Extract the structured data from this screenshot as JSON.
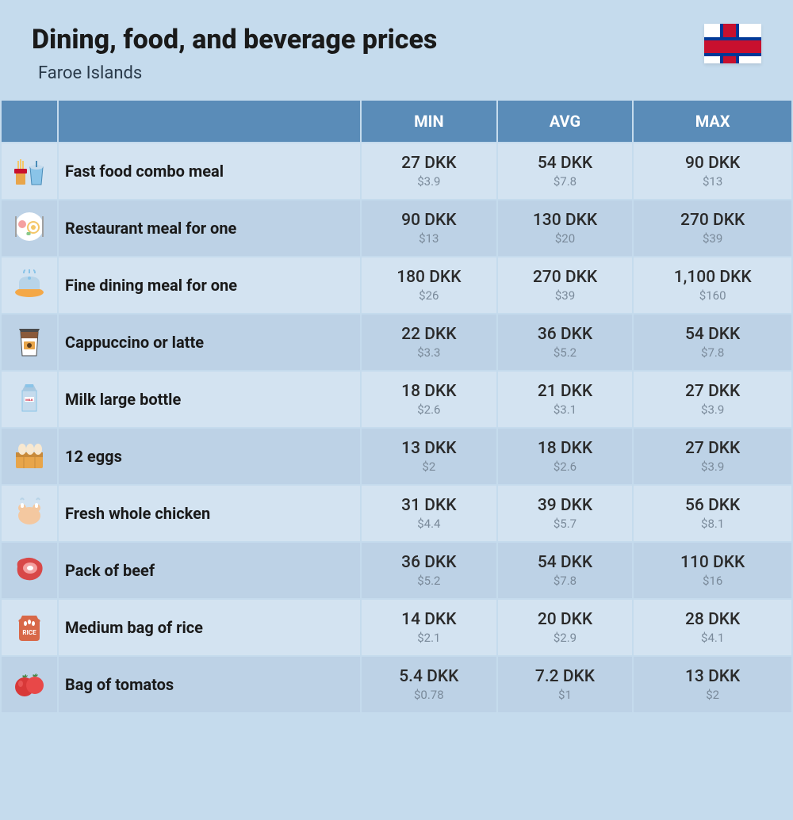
{
  "header": {
    "title": "Dining, food, and beverage prices",
    "subtitle": "Faroe Islands"
  },
  "columns": {
    "min": "MIN",
    "avg": "AVG",
    "max": "MAX"
  },
  "colors": {
    "page_bg": "#c5dbed",
    "header_bg": "#5a8cb8",
    "header_text": "#ffffff",
    "row_odd_bg": "#d3e3f1",
    "row_even_bg": "#bdd2e6",
    "price_sub": "#7a8a9a",
    "title_color": "#1a1a1a"
  },
  "rows": [
    {
      "icon": "fast-food",
      "name": "Fast food combo meal",
      "min": {
        "local": "27 DKK",
        "usd": "$3.9"
      },
      "avg": {
        "local": "54 DKK",
        "usd": "$7.8"
      },
      "max": {
        "local": "90 DKK",
        "usd": "$13"
      }
    },
    {
      "icon": "restaurant-meal",
      "name": "Restaurant meal for one",
      "min": {
        "local": "90 DKK",
        "usd": "$13"
      },
      "avg": {
        "local": "130 DKK",
        "usd": "$20"
      },
      "max": {
        "local": "270 DKK",
        "usd": "$39"
      }
    },
    {
      "icon": "fine-dining",
      "name": "Fine dining meal for one",
      "min": {
        "local": "180 DKK",
        "usd": "$26"
      },
      "avg": {
        "local": "270 DKK",
        "usd": "$39"
      },
      "max": {
        "local": "1,100 DKK",
        "usd": "$160"
      }
    },
    {
      "icon": "coffee",
      "name": "Cappuccino or latte",
      "min": {
        "local": "22 DKK",
        "usd": "$3.3"
      },
      "avg": {
        "local": "36 DKK",
        "usd": "$5.2"
      },
      "max": {
        "local": "54 DKK",
        "usd": "$7.8"
      }
    },
    {
      "icon": "milk",
      "name": "Milk large bottle",
      "min": {
        "local": "18 DKK",
        "usd": "$2.6"
      },
      "avg": {
        "local": "21 DKK",
        "usd": "$3.1"
      },
      "max": {
        "local": "27 DKK",
        "usd": "$3.9"
      }
    },
    {
      "icon": "eggs",
      "name": "12 eggs",
      "min": {
        "local": "13 DKK",
        "usd": "$2"
      },
      "avg": {
        "local": "18 DKK",
        "usd": "$2.6"
      },
      "max": {
        "local": "27 DKK",
        "usd": "$3.9"
      }
    },
    {
      "icon": "chicken",
      "name": "Fresh whole chicken",
      "min": {
        "local": "31 DKK",
        "usd": "$4.4"
      },
      "avg": {
        "local": "39 DKK",
        "usd": "$5.7"
      },
      "max": {
        "local": "56 DKK",
        "usd": "$8.1"
      }
    },
    {
      "icon": "beef",
      "name": "Pack of beef",
      "min": {
        "local": "36 DKK",
        "usd": "$5.2"
      },
      "avg": {
        "local": "54 DKK",
        "usd": "$7.8"
      },
      "max": {
        "local": "110 DKK",
        "usd": "$16"
      }
    },
    {
      "icon": "rice",
      "name": "Medium bag of rice",
      "min": {
        "local": "14 DKK",
        "usd": "$2.1"
      },
      "avg": {
        "local": "20 DKK",
        "usd": "$2.9"
      },
      "max": {
        "local": "28 DKK",
        "usd": "$4.1"
      }
    },
    {
      "icon": "tomatoes",
      "name": "Bag of tomatos",
      "min": {
        "local": "5.4 DKK",
        "usd": "$0.78"
      },
      "avg": {
        "local": "7.2 DKK",
        "usd": "$1"
      },
      "max": {
        "local": "13 DKK",
        "usd": "$2"
      }
    }
  ]
}
